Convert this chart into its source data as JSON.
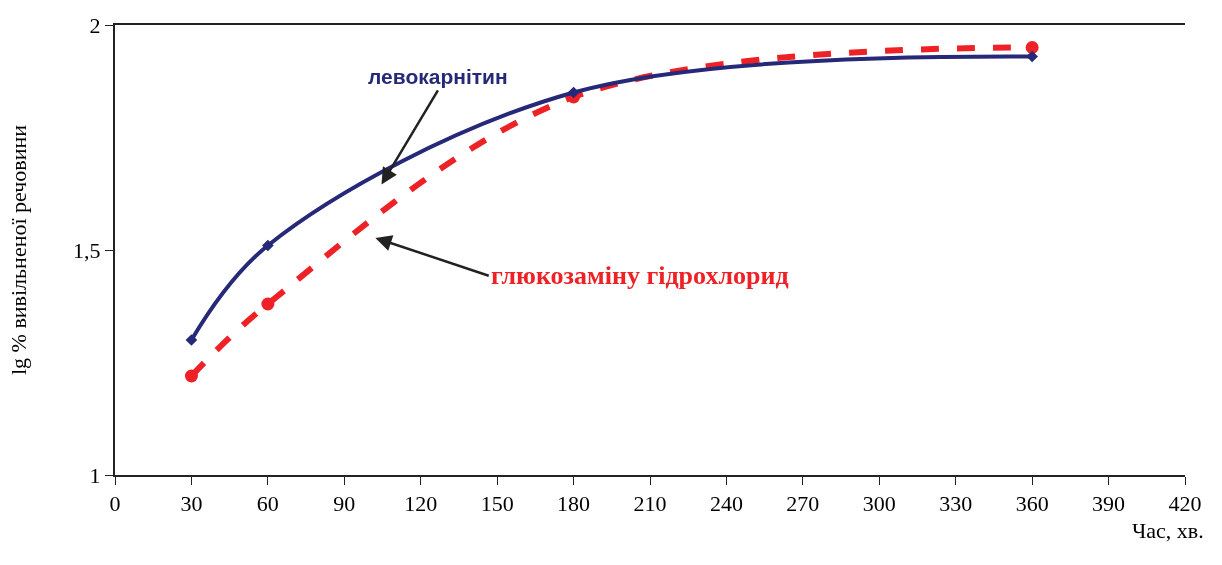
{
  "chart_data": {
    "type": "line",
    "xlabel": "Час, хв.",
    "ylabel": "lg % вивільненої речовини",
    "x": [
      30,
      60,
      180,
      360
    ],
    "series": [
      {
        "name": "левокарнітин",
        "color": "#262878",
        "values": [
          1.3,
          1.51,
          1.85,
          1.93
        ],
        "marker": "diamond",
        "line_style": "solid"
      },
      {
        "name": "глюкозаміну гідрохлорид",
        "color": "#ee2226",
        "values": [
          1.22,
          1.38,
          1.84,
          1.95
        ],
        "marker": "circle",
        "line_style": "dashed"
      }
    ],
    "xlim": [
      0,
      420
    ],
    "xticks": [
      0,
      30,
      60,
      90,
      120,
      150,
      180,
      210,
      240,
      270,
      300,
      330,
      360,
      390,
      420
    ],
    "ylim": [
      1,
      2
    ],
    "yticks": [
      1,
      {
        "value": 1.5,
        "label": "1,5"
      },
      2
    ],
    "grid": false,
    "legend": false
  }
}
